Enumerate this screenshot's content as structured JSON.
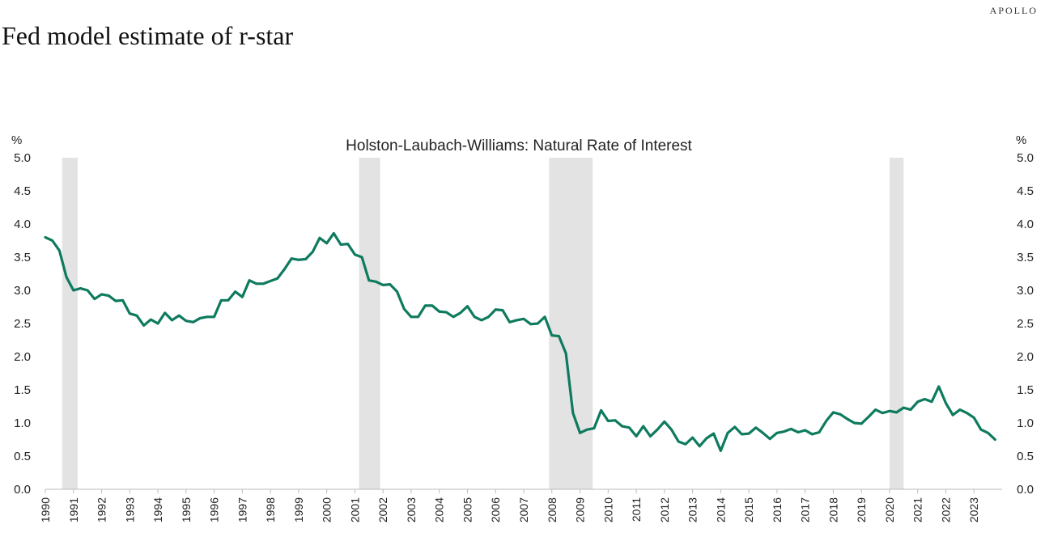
{
  "brand": "APOLLO",
  "page_title": "Fed model estimate of r-star",
  "colors": {
    "line": "#0e7a5e",
    "recession": "#e3e3e3",
    "axis": "#bbbbbb"
  },
  "chart_data": {
    "type": "line",
    "title": "Holston-Laubach-Williams: Natural Rate of Interest",
    "ylabel": "%",
    "ylabel_right": "%",
    "ylim": [
      0,
      5
    ],
    "xlim": [
      1990,
      2024
    ],
    "grid": false,
    "y_ticks": [
      "0.0",
      "0.5",
      "1.0",
      "1.5",
      "2.0",
      "2.5",
      "3.0",
      "3.5",
      "4.0",
      "4.5",
      "5.0"
    ],
    "x_ticks": [
      "1990",
      "1991",
      "1992",
      "1993",
      "1994",
      "1995",
      "1996",
      "1997",
      "1998",
      "1999",
      "2000",
      "2001",
      "2002",
      "2003",
      "2004",
      "2005",
      "2006",
      "2007",
      "2008",
      "2009",
      "2010",
      "2011",
      "2012",
      "2013",
      "2014",
      "2015",
      "2016",
      "2017",
      "2018",
      "2019",
      "2020",
      "2021",
      "2022",
      "2023"
    ],
    "recessions": [
      [
        1990.6,
        1991.15
      ],
      [
        2001.15,
        2001.9
      ],
      [
        2007.9,
        2009.45
      ],
      [
        2020.0,
        2020.5
      ]
    ],
    "series": [
      {
        "x": [
          1990.0,
          1990.25,
          1990.5,
          1990.75,
          1991.0,
          1991.25,
          1991.5,
          1991.75,
          1992.0,
          1992.25,
          1992.5,
          1992.75,
          1993.0,
          1993.25,
          1993.5,
          1993.75,
          1994.0,
          1994.25,
          1994.5,
          1994.75,
          1995.0,
          1995.25,
          1995.5,
          1995.75,
          1996.0,
          1996.25,
          1996.5,
          1996.75,
          1997.0,
          1997.25,
          1997.5,
          1997.75,
          1998.0,
          1998.25,
          1998.5,
          1998.75,
          1999.0,
          1999.25,
          1999.5,
          1999.75,
          2000.0,
          2000.25,
          2000.5,
          2000.75,
          2001.0,
          2001.25,
          2001.5,
          2001.75,
          2002.0,
          2002.25,
          2002.5,
          2002.75,
          2003.0,
          2003.25,
          2003.5,
          2003.75,
          2004.0,
          2004.25,
          2004.5,
          2004.75,
          2005.0,
          2005.25,
          2005.5,
          2005.75,
          2006.0,
          2006.25,
          2006.5,
          2006.75,
          2007.0,
          2007.25,
          2007.5,
          2007.75,
          2008.0,
          2008.25,
          2008.5,
          2008.75,
          2009.0,
          2009.25,
          2009.5,
          2009.75,
          2010.0,
          2010.25,
          2010.5,
          2010.75,
          2011.0,
          2011.25,
          2011.5,
          2011.75,
          2012.0,
          2012.25,
          2012.5,
          2012.75,
          2013.0,
          2013.25,
          2013.5,
          2013.75,
          2014.0,
          2014.25,
          2014.5,
          2014.75,
          2015.0,
          2015.25,
          2015.5,
          2015.75,
          2016.0,
          2016.25,
          2016.5,
          2016.75,
          2017.0,
          2017.25,
          2017.5,
          2017.75,
          2018.0,
          2018.25,
          2018.5,
          2018.75,
          2019.0,
          2019.25,
          2019.5,
          2019.75,
          2020.0,
          2020.25,
          2020.5,
          2020.75,
          2021.0,
          2021.25,
          2021.5,
          2021.75,
          2022.0,
          2022.25,
          2022.5,
          2022.75,
          2023.0,
          2023.25,
          2023.5,
          2023.75
        ],
        "values": [
          3.8,
          3.75,
          3.6,
          3.2,
          3.0,
          3.03,
          3.0,
          2.87,
          2.94,
          2.92,
          2.84,
          2.85,
          2.65,
          2.62,
          2.47,
          2.56,
          2.5,
          2.66,
          2.55,
          2.62,
          2.54,
          2.52,
          2.58,
          2.6,
          2.6,
          2.85,
          2.85,
          2.98,
          2.9,
          3.15,
          3.1,
          3.1,
          3.14,
          3.18,
          3.32,
          3.48,
          3.46,
          3.47,
          3.58,
          3.79,
          3.71,
          3.86,
          3.69,
          3.7,
          3.54,
          3.5,
          3.15,
          3.13,
          3.08,
          3.09,
          2.98,
          2.72,
          2.6,
          2.6,
          2.77,
          2.77,
          2.68,
          2.67,
          2.6,
          2.66,
          2.76,
          2.6,
          2.55,
          2.6,
          2.71,
          2.7,
          2.52,
          2.55,
          2.57,
          2.49,
          2.5,
          2.6,
          2.32,
          2.31,
          2.05,
          1.15,
          0.85,
          0.9,
          0.92,
          1.19,
          1.03,
          1.04,
          0.95,
          0.93,
          0.8,
          0.95,
          0.8,
          0.9,
          1.02,
          0.9,
          0.72,
          0.68,
          0.78,
          0.65,
          0.77,
          0.84,
          0.58,
          0.85,
          0.94,
          0.83,
          0.84,
          0.93,
          0.85,
          0.76,
          0.85,
          0.87,
          0.91,
          0.86,
          0.89,
          0.83,
          0.86,
          1.03,
          1.16,
          1.13,
          1.06,
          1.0,
          0.99,
          1.09,
          1.2,
          1.15,
          1.18,
          1.16,
          1.23,
          1.2,
          1.32,
          1.36,
          1.32,
          1.55,
          1.3,
          1.12,
          1.2,
          1.15,
          1.08,
          0.9,
          0.85,
          0.75
        ]
      }
    ]
  }
}
